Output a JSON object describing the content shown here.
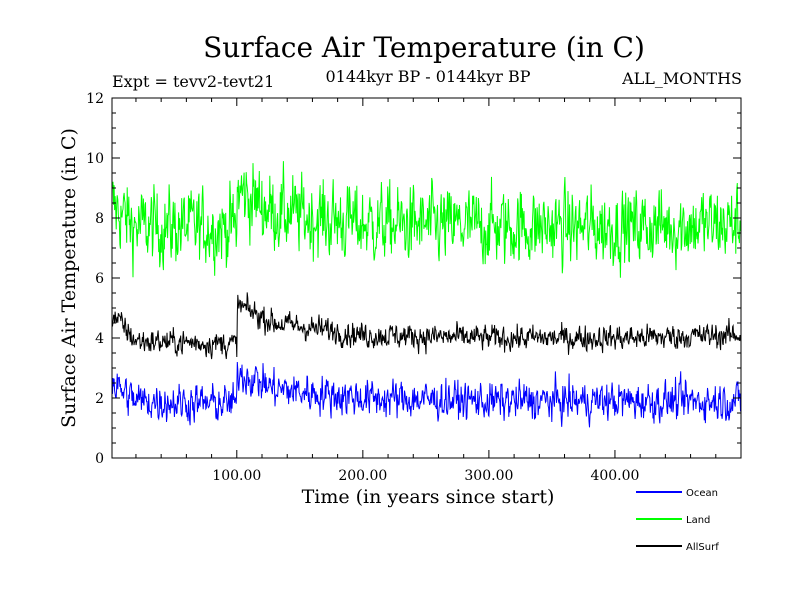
{
  "chart_data": {
    "type": "line",
    "title": "Surface Air Temperature (in C)",
    "experiment": "Expt = tevv2-tevt21",
    "period": "0144kyr BP - 0144kyr BP",
    "months": "ALL_MONTHS",
    "xlabel": "Time (in years since start)",
    "ylabel": "Surface Air Temperature (in C)",
    "xlim": [
      1,
      500
    ],
    "ylim": [
      0,
      12
    ],
    "x_ticks": [
      100,
      200,
      300,
      400
    ],
    "x_tick_labels": [
      "100.00",
      "200.00",
      "300.00",
      "400.00"
    ],
    "y_ticks": [
      0,
      2,
      4,
      6,
      8,
      10,
      12
    ],
    "y_tick_labels": [
      "0",
      "2",
      "4",
      "6",
      "8",
      "10",
      "12"
    ],
    "series": [
      {
        "name": "Ocean",
        "color": "#0000ff",
        "noise": 0.45,
        "points": [
          [
            1,
            2.5
          ],
          [
            20,
            1.9
          ],
          [
            100,
            1.8
          ],
          [
            100.5,
            2.9
          ],
          [
            130,
            2.3
          ],
          [
            200,
            2.0
          ],
          [
            300,
            1.9
          ],
          [
            400,
            1.9
          ],
          [
            500,
            1.9
          ]
        ]
      },
      {
        "name": "Land",
        "color": "#00ff00",
        "noise": 0.9,
        "points": [
          [
            1,
            8.4
          ],
          [
            20,
            7.7
          ],
          [
            100,
            7.7
          ],
          [
            100.5,
            8.9
          ],
          [
            130,
            8.2
          ],
          [
            200,
            7.8
          ],
          [
            300,
            7.7
          ],
          [
            400,
            7.7
          ],
          [
            500,
            7.8
          ]
        ]
      },
      {
        "name": "AllSurf",
        "color": "#000000",
        "noise": 0.3,
        "points": [
          [
            1,
            4.8
          ],
          [
            20,
            3.9
          ],
          [
            100,
            3.8
          ],
          [
            100.5,
            5.1
          ],
          [
            130,
            4.5
          ],
          [
            200,
            4.1
          ],
          [
            300,
            4.0
          ],
          [
            400,
            4.0
          ],
          [
            500,
            4.1
          ]
        ]
      }
    ],
    "legend_position": "bottom-right"
  }
}
